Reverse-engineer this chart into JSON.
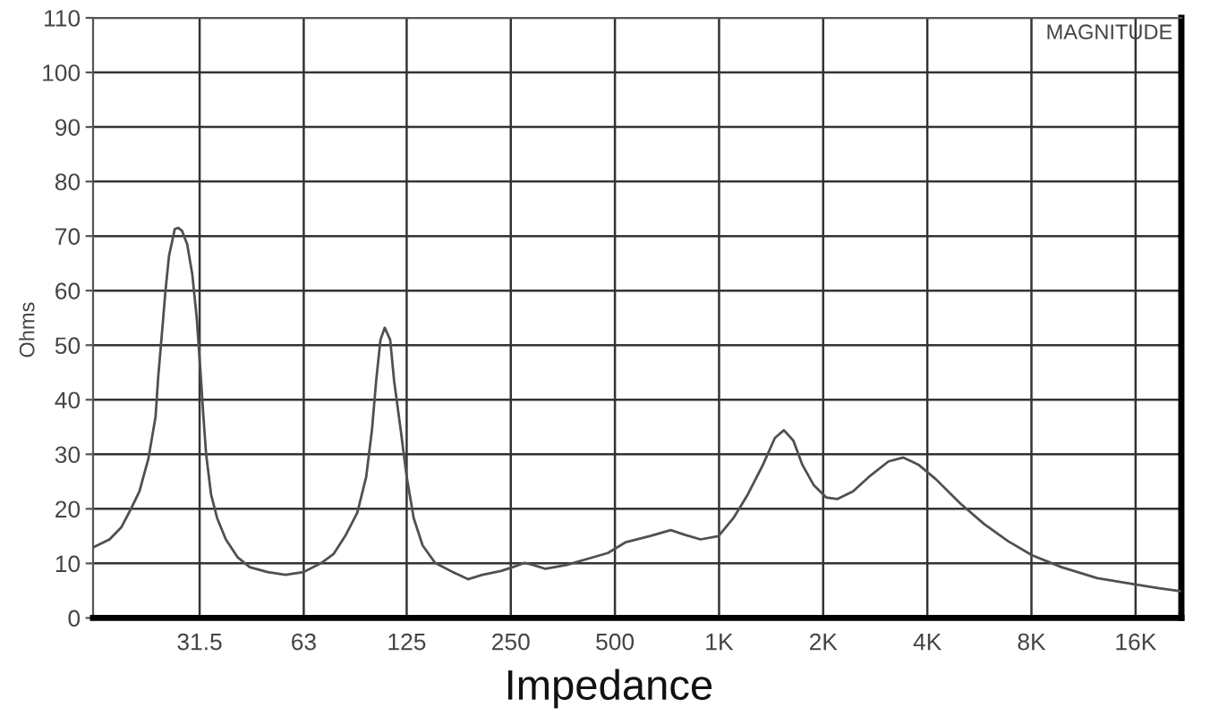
{
  "chart_data": {
    "type": "line",
    "xlabel": "Impedance",
    "ylabel": "Ohms",
    "annotations": [
      "MAGNITUDE"
    ],
    "log": "x",
    "grid": true,
    "xlim": [
      15.5,
      21700
    ],
    "ylim": [
      0,
      110
    ],
    "xticks": [
      31.5,
      63,
      125,
      250,
      500,
      {
        "value": 1000,
        "label": "1K"
      },
      {
        "value": 2000,
        "label": "2K"
      },
      {
        "value": 4000,
        "label": "4K"
      },
      {
        "value": 8000,
        "label": "8K"
      },
      {
        "value": 16000,
        "label": "16K"
      }
    ],
    "yticks": [
      0,
      10,
      20,
      30,
      40,
      50,
      60,
      70,
      80,
      90,
      100,
      110
    ],
    "series": [
      {
        "color": "#505050",
        "x": [
          15.6,
          17.3,
          18.7,
          19.8,
          21.1,
          22.4,
          23.5,
          23.9,
          24.5,
          25.1,
          25.7,
          26.7,
          27.3,
          28.0,
          29.0,
          30.0,
          30.9,
          31.7,
          32.3,
          32.9,
          34.0,
          35.4,
          37.5,
          40.6,
          44.0,
          49.6,
          55.8,
          62.9,
          70.9,
          76.8,
          83.0,
          90.0,
          95.5,
          99.3,
          102,
          105,
          108,
          112,
          115,
          120,
          125,
          131,
          139,
          151,
          170,
          188,
          207,
          234,
          253,
          274,
          290,
          315,
          362,
          415,
          477,
          538,
          630,
          725,
          800,
          884,
          996,
          1100,
          1210,
          1340,
          1450,
          1540,
          1640,
          1740,
          1880,
          2040,
          2200,
          2440,
          2740,
          3090,
          3410,
          3770,
          4240,
          4980,
          5840,
          6840,
          8030,
          9780,
          12400,
          15800,
          18500,
          21500
        ],
        "values": [
          13.0,
          14.4,
          16.6,
          19.6,
          23.2,
          29.2,
          36.9,
          44,
          52,
          60,
          66.4,
          71.3,
          71.5,
          71.0,
          68.5,
          63,
          55,
          45,
          37,
          30,
          22.6,
          18.3,
          14.4,
          11.1,
          9.3,
          8.4,
          7.9,
          8.4,
          10.1,
          11.7,
          15.0,
          19.3,
          25.9,
          34.7,
          43.4,
          51.0,
          53.2,
          51.0,
          43.4,
          34.7,
          25.9,
          18.3,
          13.3,
          10.1,
          8.4,
          7.1,
          7.9,
          8.6,
          9.3,
          10.1,
          9.7,
          9.0,
          9.7,
          10.8,
          11.9,
          13.9,
          15.0,
          16.1,
          15.2,
          14.4,
          15.0,
          18.3,
          22.6,
          28.1,
          33.0,
          34.4,
          32.5,
          28.1,
          24.3,
          22.1,
          21.8,
          23.2,
          26.1,
          28.7,
          29.4,
          28.1,
          25.4,
          21.0,
          17.2,
          14.1,
          11.5,
          9.3,
          7.3,
          6.2,
          5.5,
          4.9
        ]
      }
    ]
  }
}
